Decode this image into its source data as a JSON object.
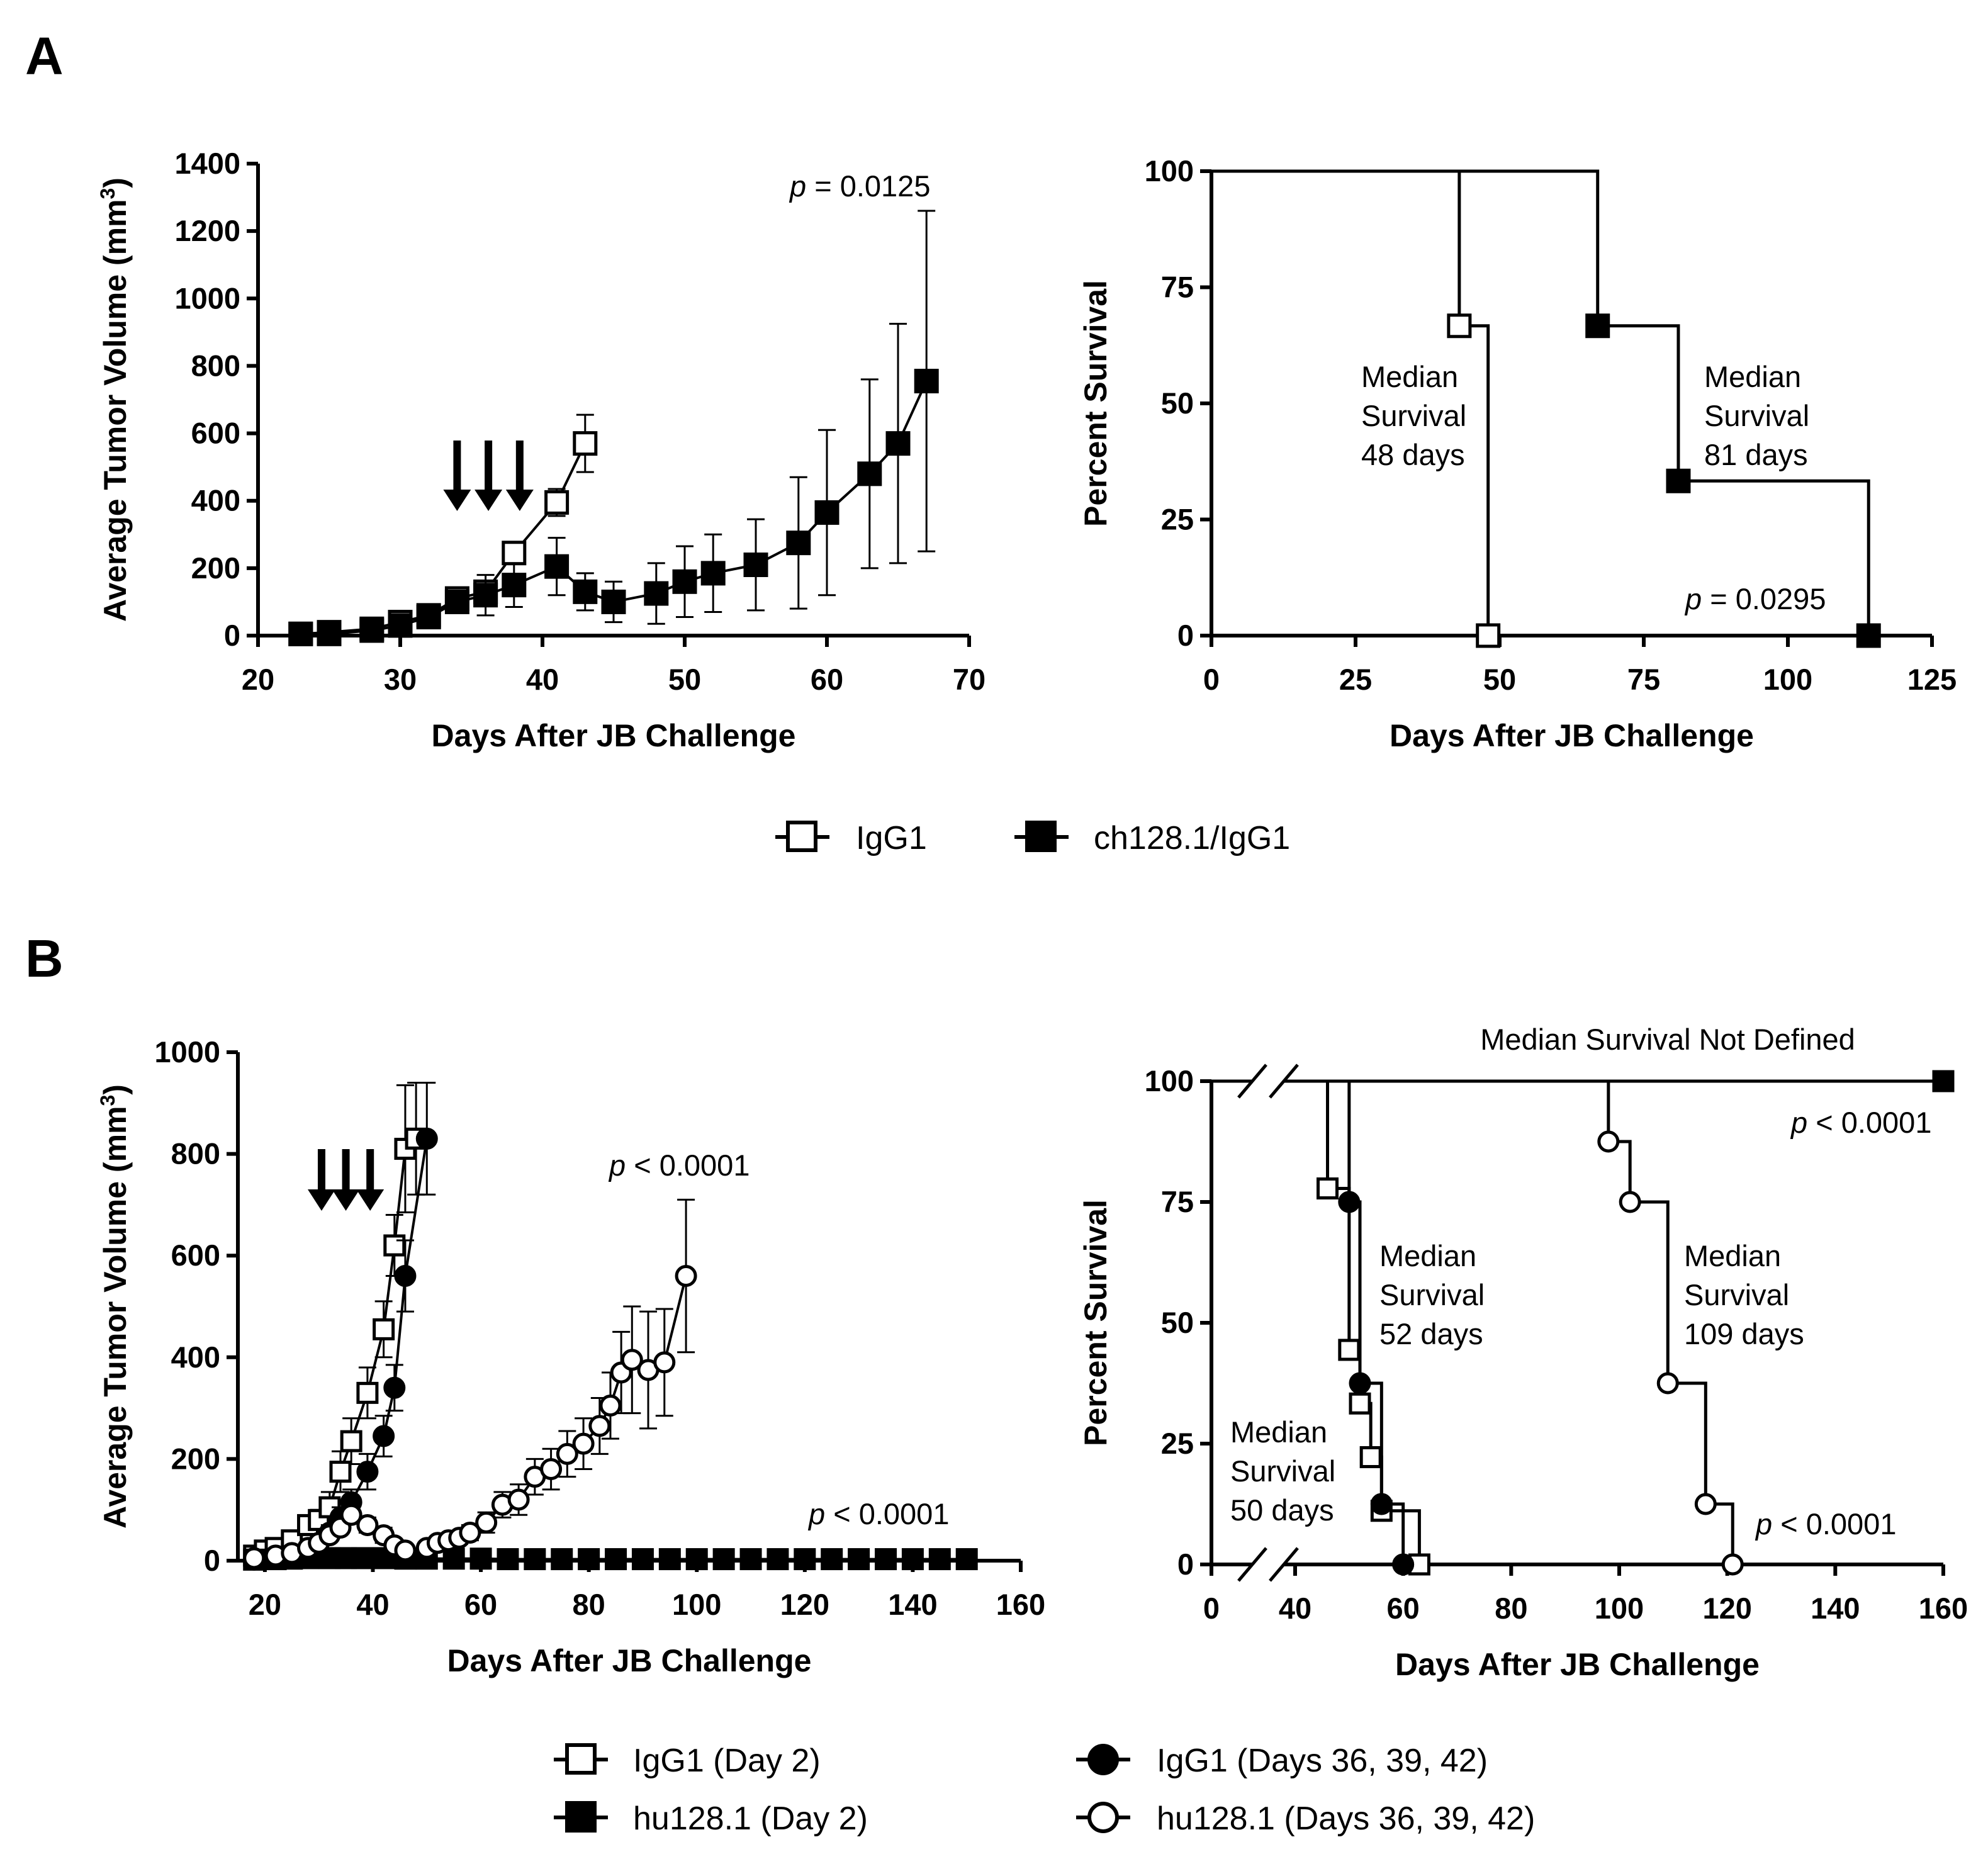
{
  "panel_labels": [
    "A",
    "B"
  ],
  "colors": {
    "ink": "#000000",
    "open_fill": "#ffffff",
    "background": "#ffffff"
  },
  "legend_a": [
    {
      "label": "IgG1",
      "marker": "open-square"
    },
    {
      "label": "ch128.1/IgG1",
      "marker": "filled-square"
    }
  ],
  "legend_b": [
    {
      "label": "IgG1 (Day 2)",
      "marker": "open-square"
    },
    {
      "label": "IgG1 (Days 36, 39, 42)",
      "marker": "filled-circle"
    },
    {
      "label": "hu128.1 (Day 2)",
      "marker": "filled-square"
    },
    {
      "label": "hu128.1 (Days 36, 39, 42)",
      "marker": "open-circle"
    }
  ],
  "chart_data": [
    {
      "id": "A-tumor",
      "type": "line",
      "title": "",
      "xlabel": "Days After JB Challenge",
      "ylabel": "Average Tumor Volume (mm",
      "ylabel_superscript": "3",
      "ylabel_close": ")",
      "xlim": [
        20,
        70
      ],
      "ylim": [
        0,
        1400
      ],
      "xticks": [
        20,
        30,
        40,
        50,
        60,
        70
      ],
      "yticks": [
        0,
        200,
        400,
        600,
        800,
        1000,
        1200,
        1400
      ],
      "arrows_at_x": [
        34,
        36.2,
        38.4
      ],
      "annotations": [
        {
          "italic": "p",
          "text": " = 0.0125"
        }
      ],
      "series": [
        {
          "name": "IgG1",
          "marker": "open-square",
          "x": [
            23,
            25,
            28,
            30,
            32,
            34,
            36,
            38,
            41,
            43
          ],
          "y": [
            5,
            10,
            20,
            40,
            60,
            110,
            130,
            245,
            395,
            570
          ],
          "err": [
            0,
            0,
            0,
            0,
            0,
            15,
            30,
            30,
            40,
            85
          ]
        },
        {
          "name": "ch128.1/IgG1",
          "marker": "filled-square",
          "x": [
            23,
            25,
            28,
            30,
            32,
            34,
            36,
            38,
            41,
            43,
            45,
            48,
            50,
            52,
            55,
            58,
            60,
            63,
            65,
            67
          ],
          "y": [
            5,
            5,
            15,
            30,
            55,
            100,
            120,
            150,
            205,
            130,
            100,
            125,
            160,
            185,
            210,
            275,
            365,
            480,
            570,
            755
          ],
          "err": [
            0,
            0,
            0,
            0,
            0,
            20,
            60,
            65,
            85,
            55,
            60,
            90,
            105,
            115,
            135,
            195,
            245,
            280,
            355,
            505
          ]
        }
      ]
    },
    {
      "id": "A-survival",
      "type": "line",
      "subtype": "kaplan-meier",
      "xlabel": "Days After JB Challenge",
      "ylabel": "Percent Survival",
      "xlim": [
        0,
        125
      ],
      "ylim": [
        0,
        100
      ],
      "xticks": [
        0,
        25,
        50,
        75,
        100,
        125
      ],
      "yticks": [
        0,
        25,
        50,
        75,
        100
      ],
      "annotations": [
        {
          "lines": [
            "Median",
            "Survival",
            "48 days"
          ]
        },
        {
          "lines": [
            "Median",
            "Survival",
            "81 days"
          ]
        },
        {
          "italic": "p",
          "text": " = 0.0295"
        }
      ],
      "series": [
        {
          "name": "IgG1",
          "marker": "open-square",
          "steps": [
            [
              0,
              100
            ],
            [
              43,
              100
            ],
            [
              43,
              66.7
            ],
            [
              48,
              66.7
            ],
            [
              48,
              0
            ]
          ],
          "marks": [
            [
              43,
              66.7
            ],
            [
              48,
              0
            ]
          ]
        },
        {
          "name": "ch128.1/IgG1",
          "marker": "filled-square",
          "steps": [
            [
              0,
              100
            ],
            [
              67,
              100
            ],
            [
              67,
              66.7
            ],
            [
              81,
              66.7
            ],
            [
              81,
              33.3
            ],
            [
              114,
              33.3
            ],
            [
              114,
              0
            ]
          ],
          "marks": [
            [
              67,
              66.7
            ],
            [
              81,
              33.3
            ],
            [
              114,
              0
            ]
          ]
        }
      ]
    },
    {
      "id": "B-tumor",
      "type": "line",
      "xlabel": "Days After JB Challenge",
      "ylabel": "Average Tumor Volume (mm",
      "ylabel_superscript": "3",
      "ylabel_close": ")",
      "xlim": [
        15,
        160
      ],
      "ylim": [
        0,
        1000
      ],
      "xticks": [
        20,
        40,
        60,
        80,
        100,
        120,
        140,
        160
      ],
      "yticks": [
        0,
        200,
        400,
        600,
        800,
        1000
      ],
      "arrows_at_x": [
        30.5,
        35,
        39.5
      ],
      "annotations": [
        {
          "italic": "p",
          "text": " < 0.0001"
        },
        {
          "italic": "p",
          "text": " < 0.0001"
        }
      ],
      "series": [
        {
          "name": "IgG1 (Day 2)",
          "marker": "open-square",
          "x": [
            18,
            20,
            22,
            25,
            28,
            30,
            32,
            34,
            36,
            39,
            42,
            44,
            46,
            48
          ],
          "y": [
            10,
            20,
            25,
            40,
            70,
            80,
            105,
            175,
            235,
            330,
            455,
            620,
            810,
            830
          ],
          "err": [
            0,
            0,
            0,
            0,
            0,
            20,
            30,
            40,
            45,
            50,
            55,
            60,
            125,
            110
          ]
        },
        {
          "name": "IgG1 (Days 36, 39, 42)",
          "marker": "filled-circle",
          "x": [
            18,
            22,
            25,
            28,
            30,
            32,
            34,
            36,
            39,
            42,
            44,
            46,
            50
          ],
          "y": [
            2,
            5,
            10,
            20,
            35,
            55,
            85,
            115,
            175,
            245,
            340,
            560,
            830
          ],
          "err": [
            0,
            0,
            0,
            0,
            0,
            15,
            20,
            25,
            35,
            40,
            45,
            70,
            110
          ]
        },
        {
          "name": "hu128.1 (Day 2)",
          "marker": "filled-square",
          "x": [
            18,
            22,
            25,
            28,
            32,
            35,
            38,
            42,
            46,
            50,
            55,
            60,
            65,
            70,
            75,
            80,
            85,
            90,
            95,
            100,
            105,
            110,
            115,
            120,
            125,
            130,
            135,
            140,
            145,
            150
          ],
          "y": [
            2,
            3,
            4,
            5,
            5,
            5,
            5,
            5,
            4,
            4,
            4,
            4,
            3,
            3,
            3,
            3,
            3,
            3,
            3,
            3,
            3,
            3,
            3,
            3,
            3,
            3,
            3,
            3,
            3,
            3
          ],
          "err": []
        },
        {
          "name": "hu128.1 (Days 36, 39, 42)",
          "marker": "open-circle",
          "x": [
            18,
            22,
            25,
            28,
            30,
            32,
            34,
            36,
            39,
            42,
            44,
            46,
            50,
            52,
            54,
            56,
            58,
            61,
            64,
            67,
            70,
            73,
            76,
            79,
            82,
            84,
            86,
            88,
            91,
            94,
            98
          ],
          "y": [
            5,
            10,
            15,
            25,
            35,
            50,
            65,
            90,
            70,
            50,
            30,
            20,
            25,
            35,
            40,
            45,
            55,
            75,
            110,
            120,
            165,
            180,
            210,
            230,
            265,
            305,
            370,
            395,
            375,
            390,
            560
          ],
          "err": [
            0,
            0,
            0,
            0,
            0,
            0,
            0,
            15,
            15,
            15,
            10,
            10,
            10,
            10,
            10,
            12,
            15,
            20,
            25,
            30,
            35,
            40,
            45,
            50,
            55,
            65,
            80,
            105,
            115,
            105,
            150
          ]
        }
      ]
    },
    {
      "id": "B-survival",
      "type": "line",
      "subtype": "kaplan-meier",
      "xlabel": "Days After JB Challenge",
      "ylabel": "Percent Survival",
      "xlim": [
        0,
        160
      ],
      "ylim": [
        0,
        100
      ],
      "xticks": [
        0,
        40,
        60,
        80,
        100,
        120,
        140,
        160
      ],
      "yticks": [
        0,
        25,
        50,
        75,
        100
      ],
      "axis_break": [
        0,
        40
      ],
      "annotations": [
        {
          "text": "Median Survival Not Defined"
        },
        {
          "italic": "p",
          "text": " < 0.0001"
        },
        {
          "lines": [
            "Median",
            "Survival",
            "52 days"
          ]
        },
        {
          "lines": [
            "Median",
            "Survival",
            "109 days"
          ]
        },
        {
          "lines": [
            "Median",
            "Survival",
            "50 days"
          ]
        },
        {
          "italic": "p",
          "text": " < 0.0001"
        }
      ],
      "series": [
        {
          "name": "IgG1 (Day 2)",
          "marker": "open-square",
          "steps": [
            [
              40,
              100
            ],
            [
              46,
              100
            ],
            [
              46,
              77.8
            ],
            [
              50,
              77.8
            ],
            [
              50,
              44.4
            ],
            [
              52,
              44.4
            ],
            [
              52,
              33.3
            ],
            [
              54,
              33.3
            ],
            [
              54,
              22.2
            ],
            [
              56,
              22.2
            ],
            [
              56,
              11.1
            ],
            [
              63,
              11.1
            ],
            [
              63,
              0
            ]
          ],
          "marks": [
            [
              46,
              77.8
            ],
            [
              50,
              44.4
            ],
            [
              52,
              33.3
            ],
            [
              54,
              22.2
            ],
            [
              56,
              11.1
            ],
            [
              63,
              0
            ]
          ]
        },
        {
          "name": "IgG1 (Days 36, 39, 42)",
          "marker": "filled-circle",
          "steps": [
            [
              40,
              100
            ],
            [
              50,
              100
            ],
            [
              50,
              75
            ],
            [
              52,
              75
            ],
            [
              52,
              37.5
            ],
            [
              56,
              37.5
            ],
            [
              56,
              12.5
            ],
            [
              60,
              12.5
            ],
            [
              60,
              0
            ]
          ],
          "marks": [
            [
              50,
              75
            ],
            [
              52,
              37.5
            ],
            [
              56,
              12.5
            ],
            [
              60,
              0
            ]
          ]
        },
        {
          "name": "hu128.1 (Day 2)",
          "marker": "filled-square",
          "steps": [
            [
              40,
              100
            ],
            [
              160,
              100
            ]
          ],
          "marks": [
            [
              160,
              100
            ]
          ]
        },
        {
          "name": "hu128.1 (Days 36, 39, 42)",
          "marker": "open-circle",
          "steps": [
            [
              40,
              100
            ],
            [
              98,
              100
            ],
            [
              98,
              87.5
            ],
            [
              102,
              87.5
            ],
            [
              102,
              75
            ],
            [
              109,
              75
            ],
            [
              109,
              37.5
            ],
            [
              116,
              37.5
            ],
            [
              116,
              12.5
            ],
            [
              121,
              12.5
            ],
            [
              121,
              0
            ]
          ],
          "marks": [
            [
              98,
              87.5
            ],
            [
              102,
              75
            ],
            [
              109,
              37.5
            ],
            [
              116,
              12.5
            ],
            [
              121,
              0
            ]
          ]
        }
      ]
    }
  ]
}
